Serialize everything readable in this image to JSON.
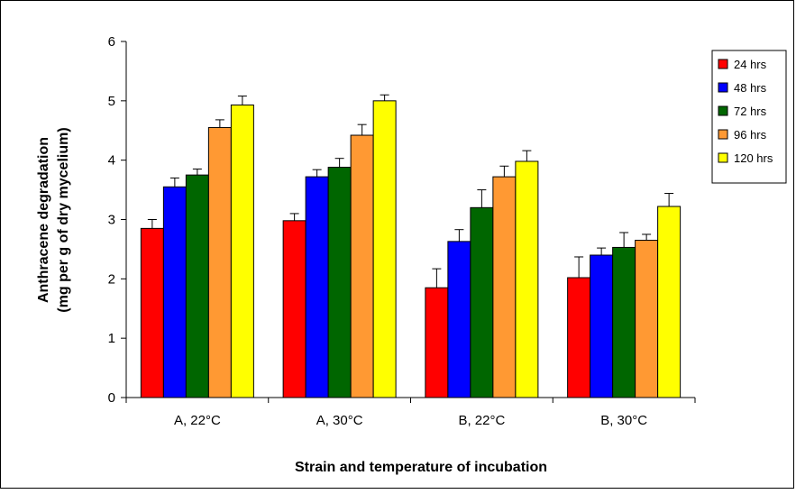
{
  "chart_data": {
    "type": "bar",
    "title": "",
    "xlabel": "Strain and temperature of incubation",
    "ylabel": "Anthracene degradation",
    "ylabel_line2": "(mg per g of dry mycelium)",
    "ylim": [
      0,
      6
    ],
    "yticks": [
      "0",
      "1",
      "2",
      "3",
      "4",
      "5",
      "6"
    ],
    "categories": [
      "A, 22°C",
      "A, 30°C",
      "B, 22°C",
      "B, 30°C"
    ],
    "legend_position": "top-right",
    "grid": false,
    "series": [
      {
        "name": "24 hrs",
        "color": "#ff0000",
        "values": [
          2.85,
          2.98,
          1.85,
          2.02
        ],
        "errors": [
          0.15,
          0.12,
          0.32,
          0.35
        ]
      },
      {
        "name": "48 hrs",
        "color": "#0000ff",
        "values": [
          3.55,
          3.72,
          2.63,
          2.4
        ],
        "errors": [
          0.15,
          0.12,
          0.2,
          0.12
        ]
      },
      {
        "name": "72 hrs",
        "color": "#006600",
        "values": [
          3.75,
          3.88,
          3.2,
          2.53
        ],
        "errors": [
          0.1,
          0.15,
          0.3,
          0.25
        ]
      },
      {
        "name": "96 hrs",
        "color": "#ff9933",
        "values": [
          4.55,
          4.42,
          3.72,
          2.65
        ],
        "errors": [
          0.13,
          0.18,
          0.18,
          0.1
        ]
      },
      {
        "name": "120 hrs",
        "color": "#ffff00",
        "values": [
          4.93,
          5.0,
          3.98,
          3.22
        ],
        "errors": [
          0.15,
          0.1,
          0.18,
          0.22
        ]
      }
    ]
  }
}
